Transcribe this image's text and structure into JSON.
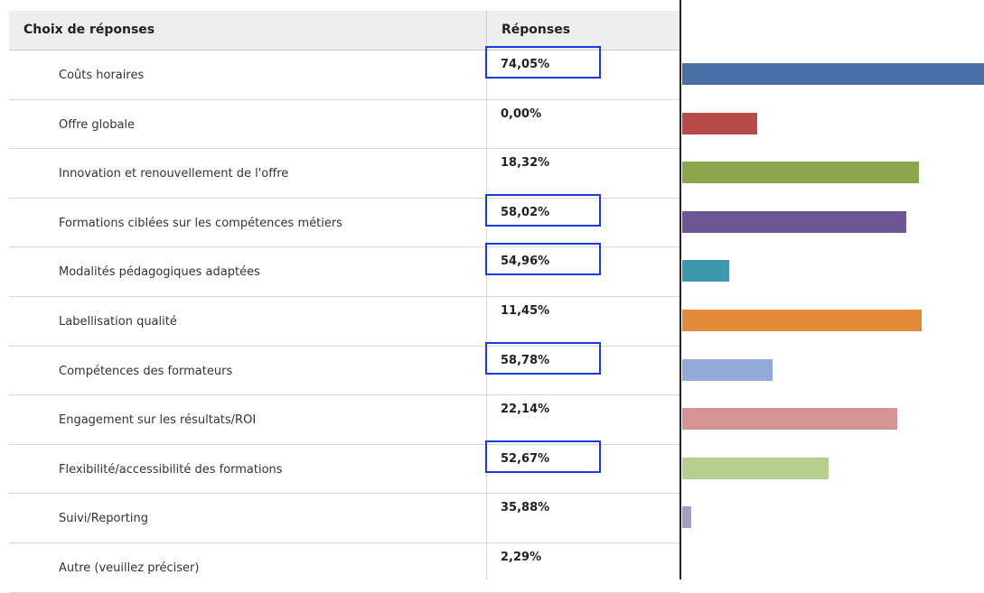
{
  "table": {
    "header": [
      "Choix de réponses",
      "Réponses"
    ],
    "rows": [
      "Coûts horaires",
      "Offre globale",
      "Innovation et renouvellement de l'offre",
      "Formations ciblées sur les compétences métiers",
      "Modalités pédagogiques adaptées",
      "Labellisation qualité",
      "Compétences des formateurs",
      "Engagement sur les résultats/ROI",
      "Flexibilité/accessibilité des formations",
      "Suivi/Reporting",
      "Autre (veuillez préciser)"
    ],
    "values": [
      74.05,
      0,
      18.32,
      58.02,
      54.96,
      11.45,
      58.78,
      22.14,
      52.67,
      35.88,
      2.29
    ],
    "value_labels": [
      "74,05%",
      "0,00%",
      "18,32%",
      "58,02%",
      "54,96%",
      "11,45%",
      "58,78%",
      "22,14%",
      "52,67%",
      "35,88%",
      "2,29%"
    ],
    "bar_colors": [
      "#4a6fa5",
      "#b84a48",
      "#8aa84b",
      "#6e5593",
      "#3d97ad",
      "#e08a3a",
      "#93aad4",
      "#d49493",
      "#b5cf8f",
      "#a79cc2"
    ],
    "highlighted": [
      0,
      3,
      4,
      6,
      8
    ]
  }
}
